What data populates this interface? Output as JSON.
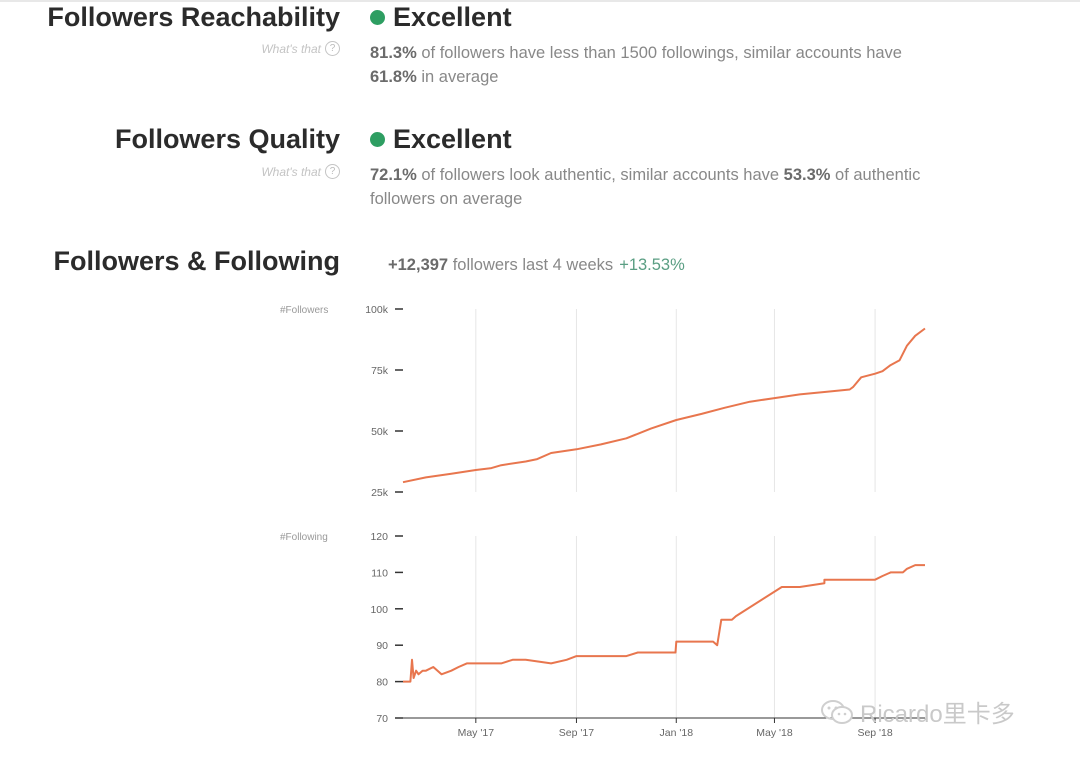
{
  "reachability": {
    "title": "Followers Reachability",
    "whats_that": "What's that",
    "rating": "Excellent",
    "rating_color": "#2e9e62",
    "stat1": "81.3%",
    "text1": " of followers have less than 1500 followings, similar accounts have ",
    "stat2": "61.8%",
    "text2": " in average"
  },
  "quality": {
    "title": "Followers Quality",
    "whats_that": "What's that",
    "rating": "Excellent",
    "rating_color": "#2e9e62",
    "stat1": "72.1%",
    "text1": " of followers look authentic, similar accounts have ",
    "stat2": "53.3%",
    "text2": " of authentic followers on average"
  },
  "growth": {
    "title": "Followers & Following",
    "count": "+12,397",
    "text": " followers last 4 weeks",
    "percent": "+13.53%"
  },
  "watermark": {
    "text": "Ricardo里卡多",
    "icon": "wechat-icon"
  },
  "line_color": "#e8764e",
  "chart_data": [
    {
      "type": "line",
      "ylabel": "#Followers",
      "ylim": [
        25000,
        100000
      ],
      "yticks": [
        25000,
        50000,
        75000,
        100000
      ],
      "ytick_labels": [
        "25k",
        "50k",
        "75k",
        "100k"
      ],
      "xlim": [
        "2017-02-01",
        "2018-11-01"
      ],
      "xticks": [
        "2017-05-01",
        "2017-09-01",
        "2018-01-01",
        "2018-05-01",
        "2018-09-01"
      ],
      "xtick_labels": [
        "May '17",
        "Sep '17",
        "Jan '18",
        "May '18",
        "Sep '18"
      ],
      "grid": "vertical",
      "series": [
        {
          "x": [
            "2017-02-01",
            "2017-03-01",
            "2017-04-01",
            "2017-05-01",
            "2017-05-20",
            "2017-06-01",
            "2017-07-01",
            "2017-07-15",
            "2017-08-01",
            "2017-09-01",
            "2017-10-01",
            "2017-11-01",
            "2017-12-01",
            "2018-01-01",
            "2018-02-01",
            "2018-03-01",
            "2018-04-01",
            "2018-05-01",
            "2018-06-01",
            "2018-07-01",
            "2018-08-01",
            "2018-08-05",
            "2018-08-15",
            "2018-09-01",
            "2018-09-10",
            "2018-09-20",
            "2018-10-01",
            "2018-10-10",
            "2018-10-20",
            "2018-11-01"
          ],
          "y": [
            29000,
            31000,
            32500,
            34000,
            34800,
            36000,
            37500,
            38500,
            41000,
            42500,
            44500,
            47000,
            51000,
            54500,
            57000,
            59500,
            62000,
            63500,
            65000,
            66000,
            67000,
            68000,
            72000,
            73500,
            74500,
            77000,
            79000,
            85000,
            89000,
            92000
          ]
        }
      ]
    },
    {
      "type": "line",
      "ylabel": "#Following",
      "ylim": [
        70,
        120
      ],
      "yticks": [
        70,
        80,
        90,
        100,
        110,
        120
      ],
      "ytick_labels": [
        "70",
        "80",
        "90",
        "100",
        "110",
        "120"
      ],
      "xlim": [
        "2017-02-01",
        "2018-11-01"
      ],
      "xticks": [
        "2017-05-01",
        "2017-09-01",
        "2018-01-01",
        "2018-05-01",
        "2018-09-01"
      ],
      "xtick_labels": [
        "May '17",
        "Sep '17",
        "Jan '18",
        "May '18",
        "Sep '18"
      ],
      "grid": "vertical",
      "series": [
        {
          "x": [
            "2017-02-01",
            "2017-02-10",
            "2017-02-12",
            "2017-02-14",
            "2017-02-17",
            "2017-02-20",
            "2017-02-25",
            "2017-03-01",
            "2017-03-10",
            "2017-03-20",
            "2017-04-01",
            "2017-04-10",
            "2017-04-20",
            "2017-05-01",
            "2017-06-01",
            "2017-06-15",
            "2017-07-01",
            "2017-08-01",
            "2017-08-20",
            "2017-09-01",
            "2017-10-01",
            "2017-11-01",
            "2017-11-15",
            "2017-12-01",
            "2017-12-31",
            "2018-01-01",
            "2018-02-15",
            "2018-02-20",
            "2018-02-25",
            "2018-03-10",
            "2018-03-15",
            "2018-05-10",
            "2018-06-01",
            "2018-07-01",
            "2018-07-01",
            "2018-08-01",
            "2018-09-01",
            "2018-09-10",
            "2018-09-20",
            "2018-10-05",
            "2018-10-10",
            "2018-10-20",
            "2018-11-01"
          ],
          "y": [
            80,
            80,
            86,
            81,
            83,
            82,
            83,
            83,
            84,
            82,
            83,
            84,
            85,
            85,
            85,
            86,
            86,
            85,
            86,
            87,
            87,
            87,
            88,
            88,
            88,
            91,
            91,
            90,
            97,
            97,
            98,
            106,
            106,
            107,
            108,
            108,
            108,
            109,
            110,
            110,
            111,
            112,
            112
          ]
        }
      ]
    }
  ]
}
